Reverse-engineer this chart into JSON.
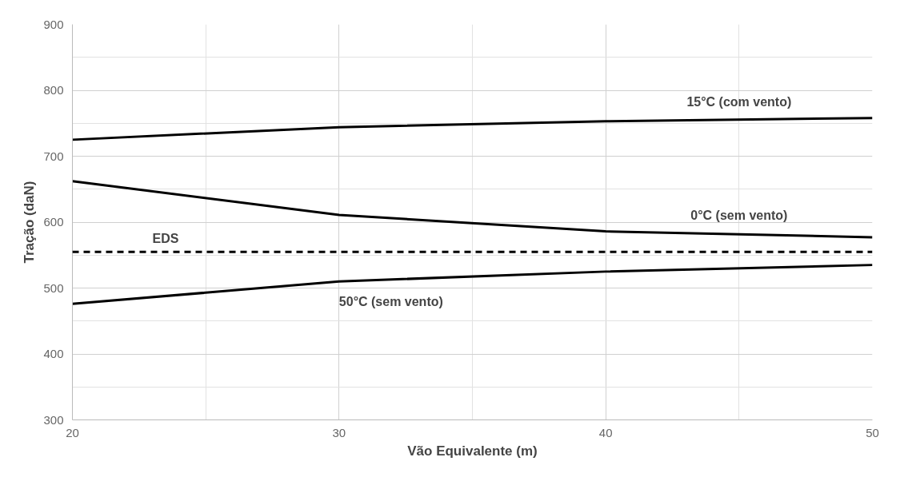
{
  "chart_data": {
    "type": "line",
    "xlabel": "Vão Equivalente (m)",
    "ylabel": "Tração (daN)",
    "x": [
      20,
      30,
      40,
      50
    ],
    "series": [
      {
        "name": "15°C (com vento)",
        "color": "#000000",
        "values": [
          725,
          744,
          753,
          758
        ]
      },
      {
        "name": "0°C (sem vento)",
        "color": "#000000",
        "values": [
          662,
          611,
          586,
          577
        ]
      },
      {
        "name": "50°C (sem vento)",
        "color": "#000000",
        "values": [
          476,
          510,
          525,
          535
        ]
      }
    ],
    "ref_lines": [
      {
        "axis": "y",
        "value": 555,
        "label": "EDS",
        "color": "#000000",
        "line_style": "dashed"
      }
    ],
    "xlim": [
      20,
      50
    ],
    "ylim": [
      300,
      900
    ],
    "xticks": [
      20,
      30,
      40,
      50
    ],
    "yticks": [
      300,
      400,
      500,
      600,
      700,
      800,
      900
    ],
    "grid": true,
    "marker": "none",
    "line_style": "solid"
  }
}
